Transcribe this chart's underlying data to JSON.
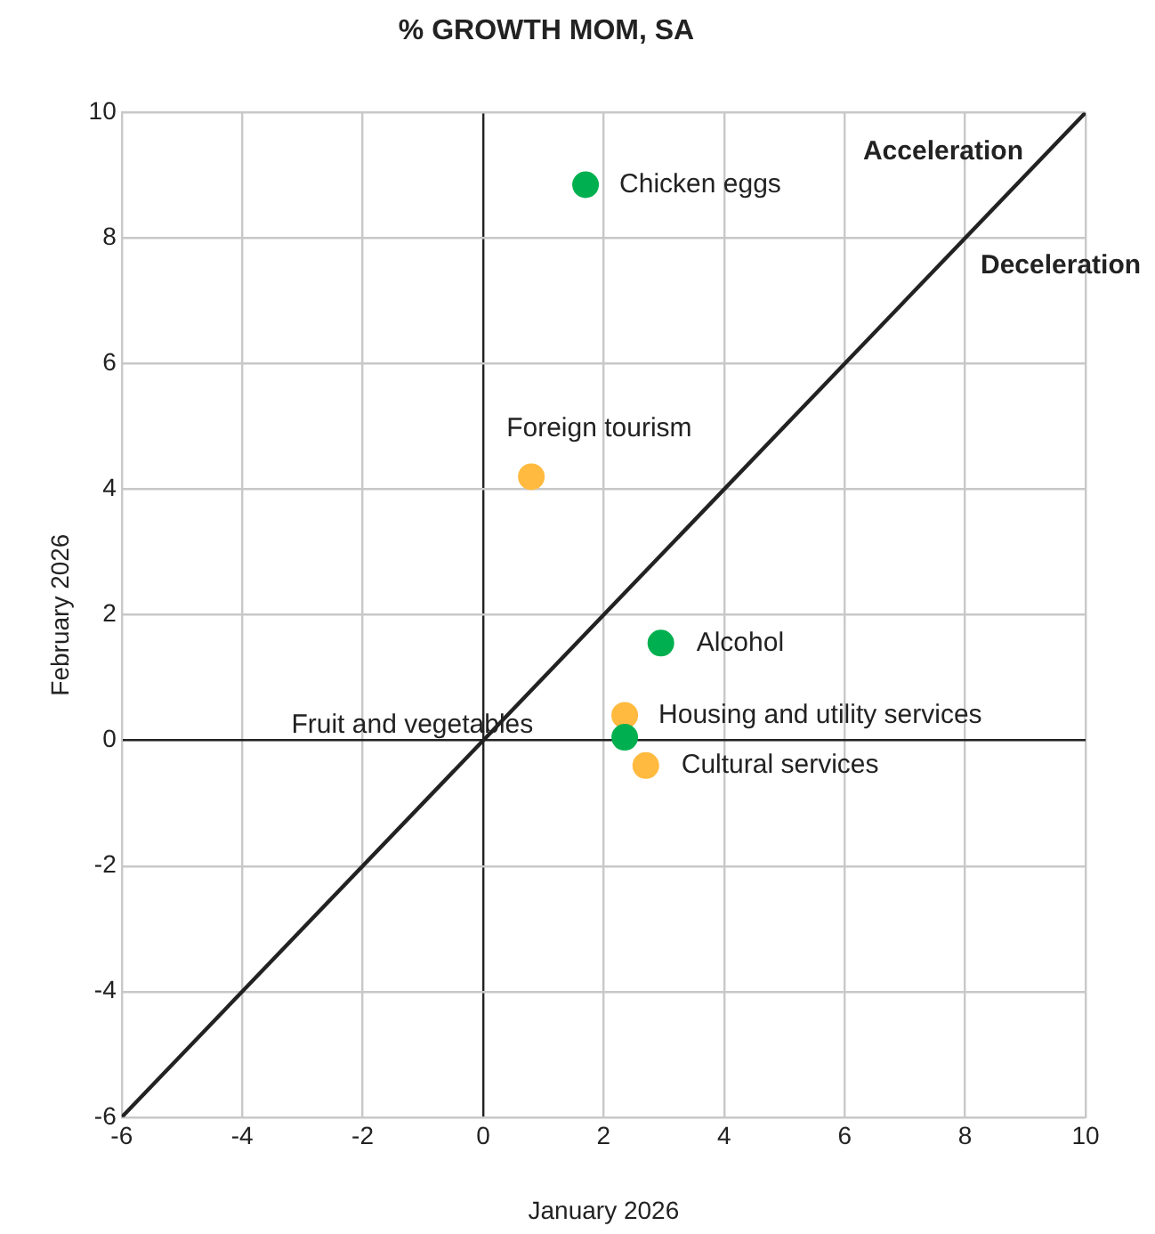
{
  "chart_data": {
    "type": "scatter",
    "title": "% GROWTH MOM, SA",
    "xlabel": "January 2026",
    "ylabel": "February 2026",
    "series": [
      {
        "color": "#00b050",
        "x": [
          1.7,
          2.95,
          2.35
        ],
        "values": [
          8.85,
          1.55,
          0.05
        ]
      },
      {
        "color": "#ffba3f",
        "x": [
          0.8,
          2.35,
          2.7
        ],
        "values": [
          4.2,
          0.4,
          -0.4
        ]
      },
      {
        "type": "line",
        "color": "#222222",
        "x": [
          -6,
          10
        ],
        "values": [
          -6,
          10
        ],
        "marker": "none"
      }
    ],
    "annotations": [
      {
        "text": "Chicken eggs",
        "x": 1.7,
        "y": 8.85
      },
      {
        "text": "Foreign tourism",
        "x": 0.8,
        "y": 4.2
      },
      {
        "text": "Alcohol",
        "x": 2.95,
        "y": 1.55
      },
      {
        "text": "Housing and utility services",
        "x": 2.35,
        "y": 0.4
      },
      "Fruit and vegetables",
      {
        "text": "Cultural services",
        "x": 2.7,
        "y": -0.4
      },
      "Acceleration",
      "Deceleration"
    ],
    "xlim": [
      -6,
      10
    ],
    "xticks": [
      -6,
      -4,
      -2,
      0,
      2,
      4,
      6,
      8,
      10
    ],
    "ylim": [
      -6,
      10
    ],
    "yticks": [
      -6,
      -4,
      -2,
      0,
      2,
      4,
      6,
      8,
      10
    ],
    "grid": true,
    "legend": false,
    "marker": "circle"
  }
}
